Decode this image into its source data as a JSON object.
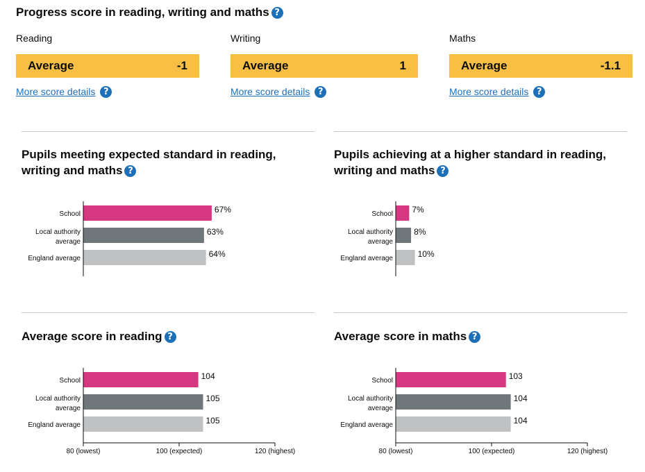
{
  "page_title": "Progress score in reading, writing and maths",
  "help_glyph": "?",
  "progress": [
    {
      "subject": "Reading",
      "band": "Average",
      "score": "-1",
      "link": "More score details"
    },
    {
      "subject": "Writing",
      "band": "Average",
      "score": "1",
      "link": "More score details"
    },
    {
      "subject": "Maths",
      "band": "Average",
      "score": "-1.1",
      "link": "More score details"
    }
  ],
  "colors": {
    "school": "#d53880",
    "local_authority": "#6f777b",
    "england": "#bfc1c3",
    "band_average": "#f8bf45",
    "link": "#1d70b8"
  },
  "chart_data": [
    {
      "type": "bar",
      "orientation": "horizontal",
      "title": "Pupils meeting expected standard in reading, writing and maths",
      "categories": [
        "School",
        "Local authority average",
        "England average"
      ],
      "values": [
        67,
        63,
        64
      ],
      "value_labels": [
        "67%",
        "63%",
        "64%"
      ],
      "xlim": [
        0,
        100
      ]
    },
    {
      "type": "bar",
      "orientation": "horizontal",
      "title": "Pupils achieving at a higher standard in reading, writing and maths",
      "categories": [
        "School",
        "Local authority average",
        "England average"
      ],
      "values": [
        7,
        8,
        10
      ],
      "value_labels": [
        "7%",
        "8%",
        "10%"
      ],
      "xlim": [
        0,
        100
      ]
    },
    {
      "type": "bar",
      "orientation": "horizontal",
      "title": "Average score in reading",
      "categories": [
        "School",
        "Local authority average",
        "England average"
      ],
      "values": [
        104,
        105,
        105
      ],
      "value_labels": [
        "104",
        "105",
        "105"
      ],
      "xlim": [
        80,
        120
      ],
      "tick_values": [
        80,
        100,
        120
      ],
      "tick_labels": [
        "80 (lowest)",
        "100 (expected)",
        "120 (highest)"
      ]
    },
    {
      "type": "bar",
      "orientation": "horizontal",
      "title": "Average score in maths",
      "categories": [
        "School",
        "Local authority average",
        "England average"
      ],
      "values": [
        103,
        104,
        104
      ],
      "value_labels": [
        "103",
        "104",
        "104"
      ],
      "xlim": [
        80,
        120
      ],
      "tick_values": [
        80,
        100,
        120
      ],
      "tick_labels": [
        "80 (lowest)",
        "100 (expected)",
        "120 (highest)"
      ]
    }
  ]
}
